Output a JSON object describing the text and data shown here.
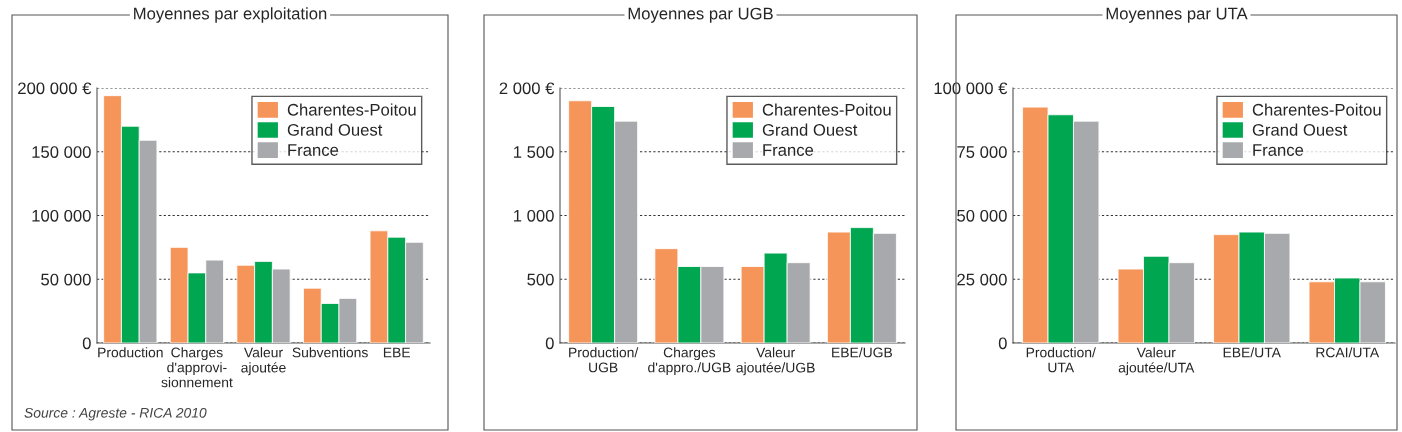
{
  "chart_data": [
    {
      "type": "bar",
      "title": "Moyennes par exploitation",
      "categories": [
        "Production",
        "Charges\nd'approvi-\nsionnement",
        "Valeur\najoutée",
        "Subventions",
        "EBE"
      ],
      "series": [
        {
          "name": "Charentes-Poitou",
          "color": "#f5955a",
          "values": [
            194000,
            75000,
            61000,
            43000,
            88000
          ]
        },
        {
          "name": "Grand Ouest",
          "color": "#00a650",
          "values": [
            170000,
            55000,
            64000,
            31000,
            83000
          ]
        },
        {
          "name": "France",
          "color": "#a7a9ac",
          "values": [
            159000,
            65000,
            58000,
            35000,
            79000
          ]
        }
      ],
      "ylim": [
        0,
        200000
      ],
      "yticks": [
        0,
        {
          "value": 50000,
          "label": "50 000"
        },
        {
          "value": 100000,
          "label": "100 000"
        },
        {
          "value": 150000,
          "label": "150 000"
        },
        {
          "value": 200000,
          "label": "200 000 €"
        }
      ],
      "grid": "y",
      "legend": "top right",
      "annotations": [
        "Source : Agreste - RICA 2010"
      ]
    },
    {
      "type": "bar",
      "title": "Moyennes par UGB",
      "categories": [
        "Production/\nUGB",
        "Charges\nd'appro./UGB",
        "Valeur\najoutée/UGB",
        "EBE/UGB"
      ],
      "series": [
        {
          "name": "Charentes-Poitou",
          "color": "#f5955a",
          "values": [
            1900,
            740,
            600,
            870
          ]
        },
        {
          "name": "Grand Ouest",
          "color": "#00a650",
          "values": [
            1855,
            600,
            705,
            905
          ]
        },
        {
          "name": "France",
          "color": "#a7a9ac",
          "values": [
            1740,
            600,
            630,
            860
          ]
        }
      ],
      "ylim": [
        0,
        2000
      ],
      "yticks": [
        0,
        500,
        {
          "value": 1000,
          "label": "1 000"
        },
        {
          "value": 1500,
          "label": "1 500"
        },
        {
          "value": 2000,
          "label": "2 000 €"
        }
      ],
      "grid": "y",
      "legend": "top right"
    },
    {
      "type": "bar",
      "title": "Moyennes par UTA",
      "categories": [
        "Production/\nUTA",
        "Valeur\najoutée/UTA",
        "EBE/UTA",
        "RCAI/UTA"
      ],
      "series": [
        {
          "name": "Charentes-Poitou",
          "color": "#f5955a",
          "values": [
            92500,
            29000,
            42500,
            24000
          ]
        },
        {
          "name": "Grand Ouest",
          "color": "#00a650",
          "values": [
            89500,
            34000,
            43500,
            25500
          ]
        },
        {
          "name": "France",
          "color": "#a7a9ac",
          "values": [
            87000,
            31500,
            43000,
            24000
          ]
        }
      ],
      "ylim": [
        0,
        100000
      ],
      "yticks": [
        0,
        {
          "value": 25000,
          "label": "25 000"
        },
        {
          "value": 50000,
          "label": "50 000"
        },
        {
          "value": 75000,
          "label": "75 000"
        },
        {
          "value": 100000,
          "label": "100 000 €"
        }
      ],
      "grid": "y",
      "legend": "top right"
    }
  ]
}
